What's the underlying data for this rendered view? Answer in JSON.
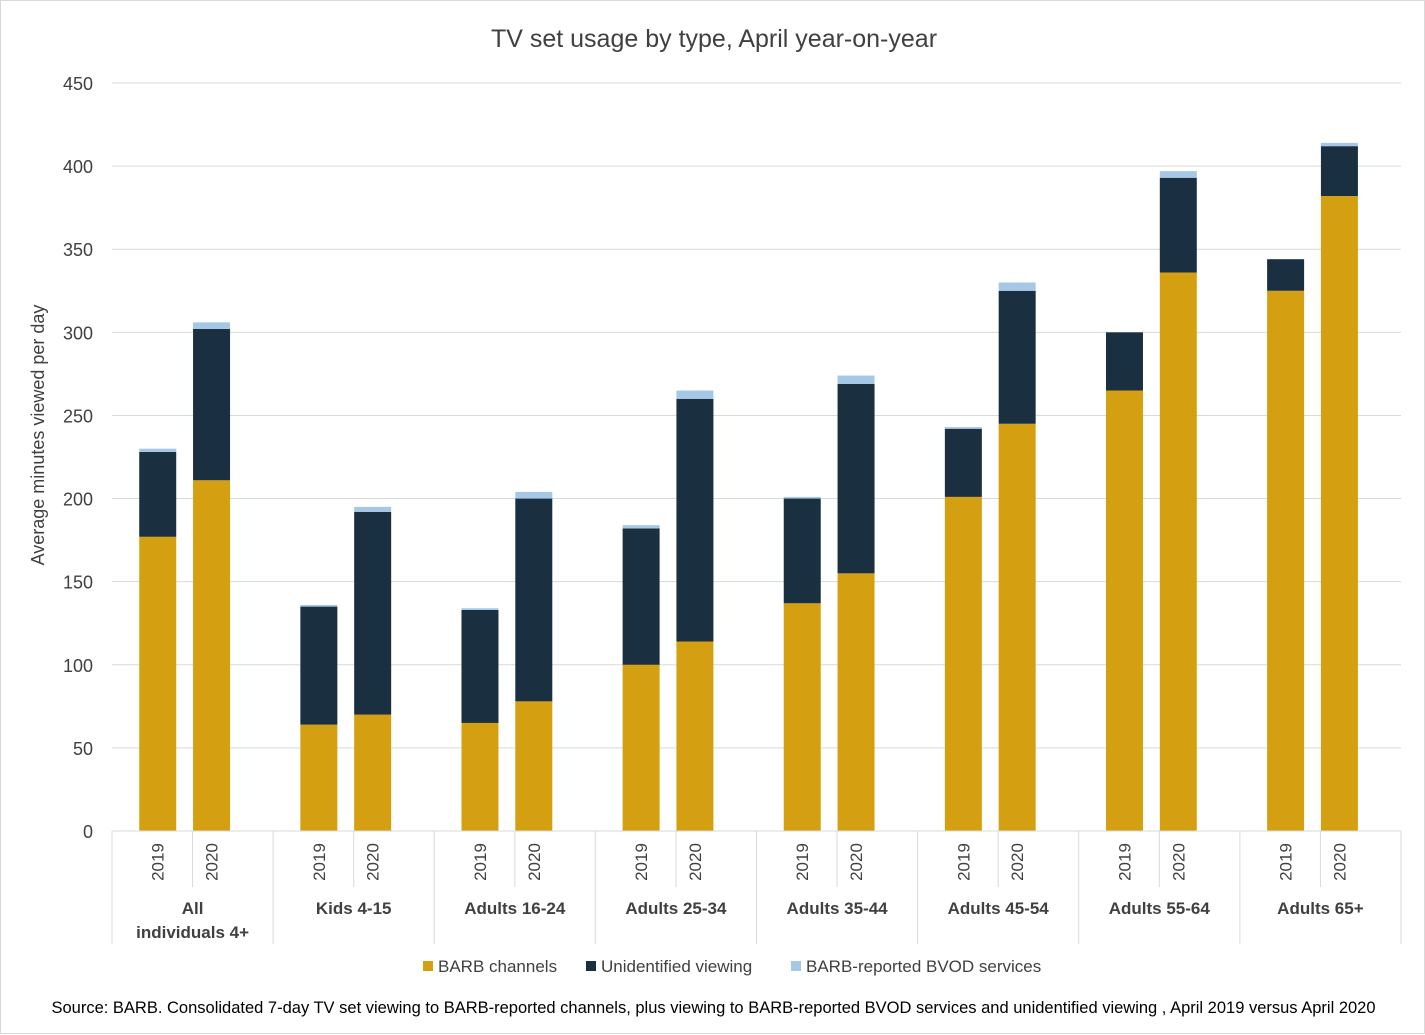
{
  "chart_data": {
    "type": "bar",
    "stacked": true,
    "title": "TV set usage by type, April year-on-year",
    "ylabel": "Average minutes viewed per day",
    "xlabel": "",
    "ylim": [
      0,
      450
    ],
    "yticks": [
      0,
      50,
      100,
      150,
      200,
      250,
      300,
      350,
      400,
      450
    ],
    "grid": true,
    "legend_position": "bottom",
    "groups": [
      "All individuals 4+",
      "Kids 4-15",
      "Adults 16-24",
      "Adults 25-34",
      "Adults 35-44",
      "Adults 45-54",
      "Adults 55-64",
      "Adults 65+"
    ],
    "years": [
      "2019",
      "2020"
    ],
    "series": [
      {
        "name": "BARB channels",
        "color": "#d4a012",
        "values": [
          [
            177,
            211
          ],
          [
            64,
            70
          ],
          [
            65,
            78
          ],
          [
            100,
            114
          ],
          [
            137,
            155
          ],
          [
            201,
            245
          ],
          [
            265,
            336
          ],
          [
            325,
            382
          ]
        ]
      },
      {
        "name": "Unidentified viewing",
        "color": "#1a3040",
        "values": [
          [
            51,
            91
          ],
          [
            71,
            122
          ],
          [
            68,
            122
          ],
          [
            82,
            146
          ],
          [
            63,
            114
          ],
          [
            41,
            80
          ],
          [
            35,
            57
          ],
          [
            19,
            30
          ]
        ]
      },
      {
        "name": "BARB-reported BVOD services",
        "color": "#a5c8e6",
        "values": [
          [
            2,
            4
          ],
          [
            1,
            3
          ],
          [
            1,
            4
          ],
          [
            2,
            5
          ],
          [
            1,
            5
          ],
          [
            1,
            5
          ],
          [
            0,
            4
          ],
          [
            0,
            2
          ]
        ]
      }
    ],
    "source": "Source: BARB. Consolidated 7-day TV set viewing to BARB-reported channels, plus viewing to BARB-reported BVOD services and unidentified viewing , April 2019 versus April 2020"
  }
}
